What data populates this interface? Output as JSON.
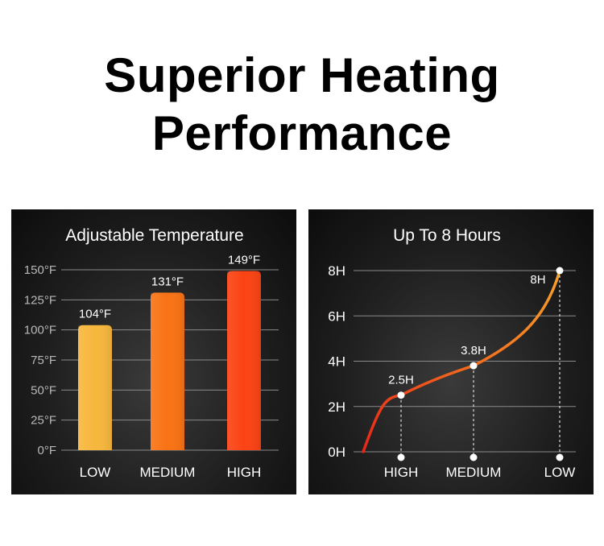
{
  "headline": {
    "line1": "Superior Heating",
    "line2": "Performance"
  },
  "chart_data": [
    {
      "type": "bar",
      "title": "Adjustable Temperature",
      "categories": [
        "LOW",
        "MEDIUM",
        "HIGH"
      ],
      "values": [
        104,
        131,
        149
      ],
      "value_labels": [
        "104°F",
        "131°F",
        "149°F"
      ],
      "colors": [
        "#f7b73c",
        "#f97214",
        "#fb4213"
      ],
      "yticks": [
        "0°F",
        "25°F",
        "50°F",
        "75°F",
        "100°F",
        "125°F",
        "150°F"
      ],
      "ylim": [
        0,
        150
      ],
      "grid": true
    },
    {
      "type": "line",
      "title": "Up To 8 Hours",
      "categories": [
        "HIGH",
        "MEDIUM",
        "LOW"
      ],
      "values": [
        2.5,
        3.8,
        8
      ],
      "value_labels": [
        "2.5H",
        "3.8H",
        "8H"
      ],
      "yticks": [
        "0H",
        "2H",
        "4H",
        "6H",
        "8H"
      ],
      "ylim": [
        0,
        8
      ],
      "grid": true,
      "line_colors": [
        "#e8261a",
        "#f7a12a"
      ]
    }
  ]
}
